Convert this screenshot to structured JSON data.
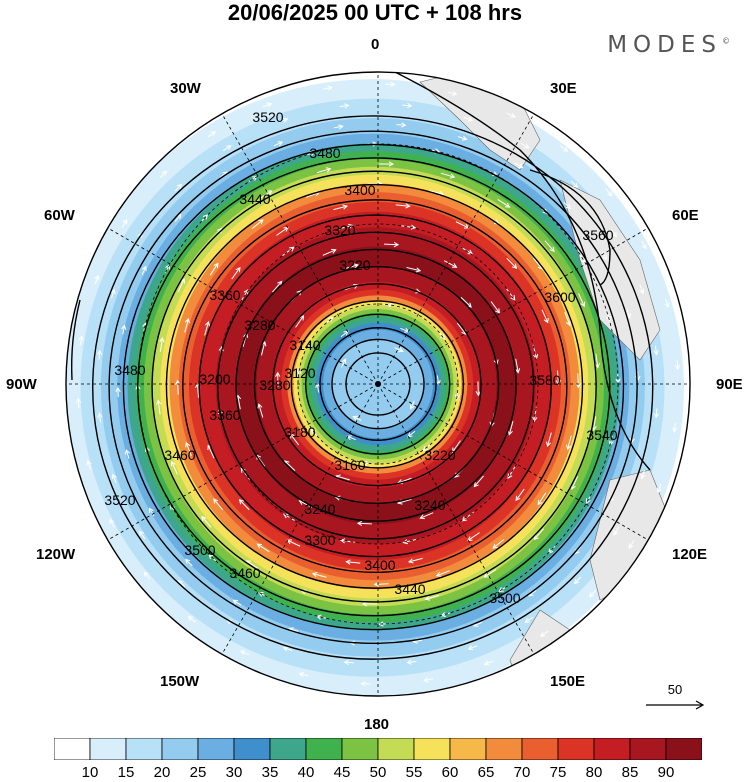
{
  "header": {
    "title": "20/06/2025  00 UTC  + 108 hrs",
    "brand": "MODES",
    "brand_mark": "©"
  },
  "map": {
    "projection": "south-polar-stereographic",
    "lon_labels": {
      "top": "0",
      "top_right": "30E",
      "right_upper": "60E",
      "right": "90E",
      "right_lower": "120E",
      "bottom_right": "150E",
      "bottom": "180",
      "bottom_left": "150W",
      "left_lower": "120W",
      "left": "90W",
      "left_upper": "60W",
      "top_left": "30W"
    },
    "contour_labels": [
      "3520",
      "3480",
      "3440",
      "3400",
      "3360",
      "3320",
      "3280",
      "3240",
      "3220",
      "3200",
      "3180",
      "3160",
      "3140",
      "3120",
      "3560",
      "3540",
      "3500",
      "3460",
      "3600",
      "3580",
      "3520",
      "3500",
      "3480",
      "3460",
      "3440",
      "3400",
      "3360",
      "3300",
      "3280",
      "3240",
      "3220"
    ],
    "shading_variable": "wind speed",
    "contour_variable": "geopotential height",
    "reference_vector": "50",
    "colors": {
      "land": "#e8e8e8",
      "contour": "#000000",
      "vectors": "#ffffff"
    }
  },
  "colorbar": {
    "ticks": [
      "10",
      "15",
      "20",
      "25",
      "30",
      "35",
      "40",
      "45",
      "50",
      "55",
      "60",
      "65",
      "70",
      "75",
      "80",
      "85",
      "90"
    ],
    "colors": [
      "#ffffff",
      "#d8eefb",
      "#b8e0f7",
      "#94ccf0",
      "#6aaee2",
      "#3f8fcd",
      "#3ea68a",
      "#3fb24e",
      "#7cc243",
      "#c4dc55",
      "#f6e25a",
      "#f7b84a",
      "#f28c3c",
      "#ea5f30",
      "#dc3327",
      "#c41e24",
      "#a8161f",
      "#8a101a"
    ]
  }
}
